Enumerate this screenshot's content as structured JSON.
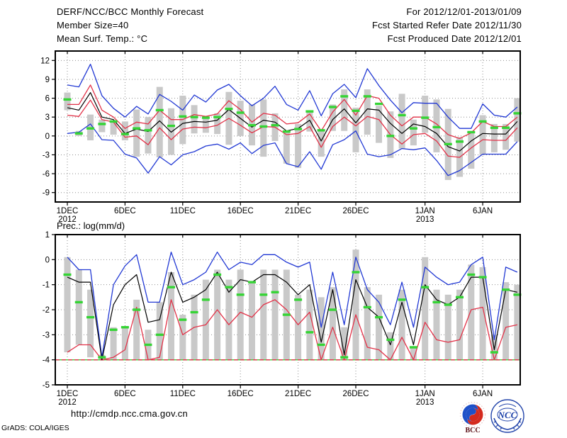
{
  "header": {
    "left_lines": [
      "DERF/NCC/BCC Monthly Forecast",
      "Member Size=40",
      "Mean Surf. Temp.: °C"
    ],
    "right_lines": [
      "For 2012/12/01-2013/01/09",
      "Fcst Started Refer Date 2012/11/30",
      "Fcst Produced Date 2012/12/01"
    ]
  },
  "footer": {
    "url": "http://cmdp.ncc.cma.gov.cn",
    "credit": "GrADS: COLA/IGES",
    "bcc_label": "BCC",
    "ncc_label": "NCC"
  },
  "colors": {
    "envelope": "#2239d4",
    "quartile": "#e23248",
    "mean": "#000000",
    "obs": "#35d435",
    "bar": "#c9c9c9",
    "grid": "#8f8f8f",
    "frame": "#000000",
    "baseline_green": "#35d435",
    "baseline_red": "#e23248"
  },
  "chart_data": [
    {
      "id": "surface-temperature",
      "type": "line",
      "title": "",
      "units": "°C",
      "n": 40,
      "ylim": [
        -10.5,
        13.5
      ],
      "yticks": [
        -9,
        -6,
        -3,
        0,
        3,
        6,
        9,
        12
      ],
      "xticks": [
        {
          "day": 1,
          "label": "1DEC",
          "year": "2012"
        },
        {
          "day": 6,
          "label": "6DEC"
        },
        {
          "day": 11,
          "label": "11DEC"
        },
        {
          "day": 16,
          "label": "16DEC"
        },
        {
          "day": 21,
          "label": "21DEC"
        },
        {
          "day": 26,
          "label": "26DEC"
        },
        {
          "day": 32,
          "label": "1JAN",
          "year": "2013"
        },
        {
          "day": 37,
          "label": "6JAN"
        }
      ],
      "grid": true,
      "legend": "none",
      "series": [
        {
          "name": "ensemble-max",
          "color_key": "envelope",
          "values": [
            8.1,
            7.8,
            11.4,
            6.4,
            4.4,
            3.0,
            4.7,
            3.5,
            6.6,
            5.5,
            4.1,
            6.5,
            5.4,
            7.3,
            8.2,
            6.4,
            4.8,
            6.0,
            7.9,
            5.0,
            4.1,
            7.2,
            3.2,
            6.7,
            8.2,
            6.1,
            10.7,
            8.0,
            5.7,
            3.7,
            5.3,
            5.2,
            5.2,
            3.0,
            1.2,
            1.2,
            5.1,
            3.3,
            3.0,
            4.6
          ]
        },
        {
          "name": "ensemble-min",
          "color_key": "envelope",
          "values": [
            0.4,
            0.6,
            1.9,
            -0.6,
            -0.7,
            -2.9,
            -3.5,
            -5.9,
            -3.3,
            -4.6,
            -3.0,
            -2.5,
            -1.6,
            -1.3,
            -2.1,
            -1.1,
            -2.8,
            -1.5,
            -1.1,
            -4.4,
            -4.9,
            -2.5,
            -5.3,
            -1.4,
            -0.6,
            0.8,
            -2.9,
            -3.3,
            -3.0,
            -2.0,
            -2.2,
            -1.9,
            -3.9,
            -6.3,
            -5.5,
            -4.2,
            -2.9,
            -2.9,
            -2.9,
            -0.9
          ]
        },
        {
          "name": "upper-quartile",
          "color_key": "quartile",
          "values": [
            5.0,
            5.0,
            8.1,
            4.1,
            3.0,
            1.2,
            2.2,
            1.9,
            4.1,
            2.6,
            2.6,
            3.4,
            3.1,
            3.5,
            5.6,
            4.2,
            2.2,
            3.6,
            3.3,
            1.9,
            2.1,
            3.5,
            0.8,
            3.8,
            5.8,
            3.3,
            6.4,
            6.0,
            3.3,
            1.6,
            3.0,
            3.0,
            1.9,
            0.2,
            -0.4,
            0.5,
            2.3,
            1.5,
            1.5,
            3.0
          ]
        },
        {
          "name": "lower-quartile",
          "color_key": "quartile",
          "values": [
            3.3,
            3.1,
            5.7,
            2.6,
            2.2,
            -0.2,
            0.0,
            -1.4,
            1.3,
            -0.6,
            1.1,
            1.4,
            1.3,
            1.7,
            2.8,
            1.7,
            0.5,
            1.5,
            1.4,
            0.2,
            0.4,
            1.5,
            -1.8,
            1.5,
            3.0,
            1.6,
            3.1,
            2.6,
            0.2,
            -1.3,
            0.2,
            0.4,
            -0.8,
            -3.2,
            -3.4,
            -1.9,
            -0.6,
            -0.7,
            -0.7,
            1.3
          ]
        },
        {
          "name": "ensemble-mean",
          "color_key": "mean",
          "values": [
            4.5,
            4.1,
            6.9,
            3.0,
            2.6,
            0.4,
            1.1,
            0.7,
            2.4,
            0.6,
            2.0,
            2.3,
            2.2,
            2.5,
            4.2,
            2.8,
            1.4,
            2.5,
            2.2,
            0.8,
            1.2,
            2.5,
            -0.8,
            2.6,
            4.3,
            2.1,
            4.3,
            4.1,
            2.0,
            0.4,
            1.9,
            1.5,
            0.4,
            -1.7,
            -2.4,
            -0.8,
            0.4,
            0.3,
            0.3,
            2.3
          ]
        }
      ],
      "obs_dashes": [
        5.8,
        0.4,
        1.2,
        1.9,
        2.3,
        0.3,
        1.2,
        0.9,
        4.1,
        1.6,
        3.1,
        3.0,
        2.9,
        3.0,
        4.3,
        3.7,
        1.7,
        1.5,
        1.7,
        0.7,
        1.1,
        3.9,
        0.9,
        4.6,
        6.3,
        4.0,
        6.3,
        5.1,
        0.0,
        3.3,
        1.2,
        2.9,
        1.4,
        -1.3,
        -0.9,
        0.6,
        2.3,
        1.3,
        1.3,
        3.6
      ],
      "bars": [
        [
          4.1,
          6.9
        ],
        [
          0.0,
          0.8
        ],
        [
          -0.7,
          3.4
        ],
        [
          0.6,
          2.6
        ],
        [
          0.2,
          2.5
        ],
        [
          -0.7,
          2.3
        ],
        [
          -3.3,
          4.2
        ],
        [
          -2.8,
          3.0
        ],
        [
          -3.4,
          7.8
        ],
        [
          -3.0,
          4.4
        ],
        [
          -1.3,
          6.4
        ],
        [
          0.4,
          4.9
        ],
        [
          0.5,
          3.2
        ],
        [
          0.3,
          3.6
        ],
        [
          -1.4,
          7.0
        ],
        [
          0.0,
          5.6
        ],
        [
          -1.5,
          5.0
        ],
        [
          -3.3,
          5.8
        ],
        [
          -0.8,
          3.6
        ],
        [
          -4.4,
          0.8
        ],
        [
          -5.1,
          1.9
        ],
        [
          0.7,
          3.9
        ],
        [
          -3.3,
          0.8
        ],
        [
          0.8,
          5.0
        ],
        [
          0.8,
          7.4
        ],
        [
          -2.6,
          4.5
        ],
        [
          0.2,
          7.4
        ],
        [
          -1.1,
          4.8
        ],
        [
          -3.5,
          3.9
        ],
        [
          -2.0,
          6.7
        ],
        [
          -1.5,
          2.6
        ],
        [
          0.5,
          6.4
        ],
        [
          -2.6,
          5.8
        ],
        [
          -7.0,
          4.3
        ],
        [
          -6.5,
          -0.2
        ],
        [
          -5.2,
          0.8
        ],
        [
          -3.0,
          3.3
        ],
        [
          -2.6,
          1.9
        ],
        [
          -2.2,
          1.9
        ],
        [
          -0.9,
          6.0
        ]
      ]
    },
    {
      "id": "precipitation",
      "type": "line",
      "title": "Prec.: log(mm/d)",
      "units": "log(mm/d)",
      "n": 40,
      "ylim": [
        -5,
        1
      ],
      "yticks": [
        -5,
        -4,
        -3,
        -2,
        -1,
        0,
        1
      ],
      "xticks": [
        {
          "day": 1,
          "label": "1DEC",
          "year": "2012"
        },
        {
          "day": 6,
          "label": "6DEC"
        },
        {
          "day": 11,
          "label": "11DEC"
        },
        {
          "day": 16,
          "label": "16DEC"
        },
        {
          "day": 21,
          "label": "21DEC"
        },
        {
          "day": 26,
          "label": "26DEC"
        },
        {
          "day": 32,
          "label": "1JAN",
          "year": "2013"
        },
        {
          "day": 37,
          "label": "6JAN"
        }
      ],
      "grid": true,
      "legend": "none",
      "baseline": -4,
      "series": [
        {
          "name": "ensemble-max",
          "color_key": "envelope",
          "values": [
            0.1,
            -0.4,
            -0.4,
            -3.9,
            -1.0,
            -0.25,
            0.2,
            -1.7,
            -1.7,
            0.3,
            -1.0,
            -0.8,
            -0.5,
            0.3,
            -0.4,
            -0.1,
            -0.2,
            0.2,
            0.2,
            -0.1,
            -0.3,
            -0.1,
            -2.7,
            -0.5,
            -2.6,
            0.1,
            -1.2,
            -1.7,
            -2.6,
            -0.9,
            -2.7,
            -0.3,
            -0.7,
            -1.0,
            -0.9,
            -0.2,
            0.1,
            -3.2,
            -0.3,
            -0.5
          ]
        },
        {
          "name": "ensemble-min",
          "color_key": "quartile",
          "values": [
            -3.7,
            -3.4,
            -3.4,
            -4.0,
            -3.9,
            -3.6,
            -1.9,
            -4.0,
            -3.9,
            -1.6,
            -3.0,
            -2.7,
            -2.6,
            -2.0,
            -2.6,
            -2.1,
            -2.3,
            -1.8,
            -1.6,
            -2.0,
            -2.6,
            -2.1,
            -4.0,
            -2.7,
            -4.0,
            -2.2,
            -3.5,
            -3.6,
            -4.0,
            -3.1,
            -4.0,
            -2.5,
            -3.2,
            -3.3,
            -3.2,
            -2.0,
            -1.9,
            -4.0,
            -2.7,
            -2.6
          ]
        },
        {
          "name": "ensemble-mean",
          "color_key": "mean",
          "values": [
            -0.7,
            -0.9,
            -0.9,
            -4.0,
            -1.8,
            -1.0,
            -0.6,
            -2.5,
            -2.4,
            -0.5,
            -1.7,
            -1.5,
            -1.2,
            -0.5,
            -1.3,
            -0.8,
            -0.9,
            -0.6,
            -0.6,
            -0.9,
            -1.4,
            -1.0,
            -3.3,
            -1.2,
            -3.8,
            -0.8,
            -1.9,
            -2.3,
            -3.4,
            -1.7,
            -3.4,
            -1.0,
            -1.6,
            -1.8,
            -1.5,
            -0.7,
            -0.7,
            -3.6,
            -1.2,
            -1.3
          ]
        }
      ],
      "obs_dashes": [
        -0.6,
        -1.7,
        -2.3,
        -3.9,
        -2.8,
        -2.7,
        -2.0,
        -3.4,
        -3.0,
        -1.1,
        -2.4,
        -2.1,
        -1.6,
        -0.6,
        -1.1,
        -1.4,
        -0.9,
        -1.4,
        -1.3,
        -2.2,
        -1.6,
        -2.9,
        -3.4,
        -2.0,
        -3.9,
        -0.5,
        -1.9,
        -2.3,
        -3.2,
        -1.6,
        -3.5,
        -1.1,
        -1.7,
        -1.8,
        -1.5,
        -0.6,
        -0.7,
        -3.7,
        -1.2,
        -1.4
      ],
      "bars": [
        [
          -3.7,
          0.1
        ],
        [
          -3.4,
          -0.4
        ],
        [
          -3.9,
          -1.2
        ],
        [
          -4,
          -3.8
        ],
        [
          -4,
          -2.7
        ],
        [
          -4,
          -2.7
        ],
        [
          -4,
          -1.6
        ],
        [
          -4,
          -2.8
        ],
        [
          -4,
          -1.7
        ],
        [
          -4,
          -0.5
        ],
        [
          -4,
          -2.2
        ],
        [
          -4,
          -1.4
        ],
        [
          -4,
          -0.8
        ],
        [
          -4,
          -0.4
        ],
        [
          -4,
          -0.8
        ],
        [
          -4,
          -0.4
        ],
        [
          -4,
          -0.9
        ],
        [
          -4,
          -0.4
        ],
        [
          -4,
          -0.4
        ],
        [
          -4,
          -0.4
        ],
        [
          -4,
          -1.4
        ],
        [
          -4,
          -1.2
        ],
        [
          -4,
          -1.5
        ],
        [
          -4,
          -1.1
        ],
        [
          -4,
          -2.7
        ],
        [
          -4,
          0.4
        ],
        [
          -4,
          -1.1
        ],
        [
          -4,
          -1.4
        ],
        [
          -4,
          -2.9
        ],
        [
          -4,
          -1.2
        ],
        [
          -4,
          -3.5
        ],
        [
          -4,
          0.1
        ],
        [
          -4,
          -1.2
        ],
        [
          -4,
          -1.4
        ],
        [
          -4,
          -1.2
        ],
        [
          -4,
          -0.2
        ],
        [
          -4,
          -0.3
        ],
        [
          -4,
          -3.0
        ],
        [
          -4,
          -0.9
        ],
        [
          -4,
          -1.0
        ]
      ]
    }
  ]
}
